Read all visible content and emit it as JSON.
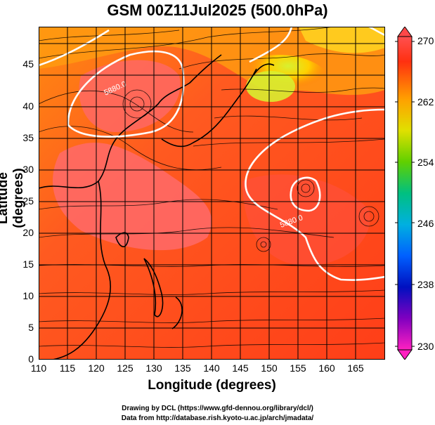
{
  "title": "GSM 00Z11Jul2025 (500.0hPa)",
  "xlabel": "Longitude (degrees)",
  "ylabel": "Latitude  (degrees)",
  "x_ticks": [
    "110",
    "115",
    "120",
    "125",
    "130",
    "135",
    "140",
    "145",
    "150",
    "155",
    "160",
    "165"
  ],
  "y_ticks": [
    "0",
    "5",
    "10",
    "15",
    "20",
    "25",
    "30",
    "35",
    "40",
    "45"
  ],
  "colorbar_ticks": [
    "270",
    "262",
    "254",
    "246",
    "238",
    "230"
  ],
  "contour_labels": [
    "5880.0",
    "5880.0"
  ],
  "credit_line1": "Drawing by DCL (https://www.gfd-dennou.org/library/dcl/)",
  "credit_line2": "Data from http://database.rish.kyoto-u.ac.jp/arch/jmadata/",
  "colors": {
    "warm": "#ff4a1a",
    "hot": "#ff6060",
    "cool": "#c8e030",
    "mid": "#ff9a00"
  }
}
